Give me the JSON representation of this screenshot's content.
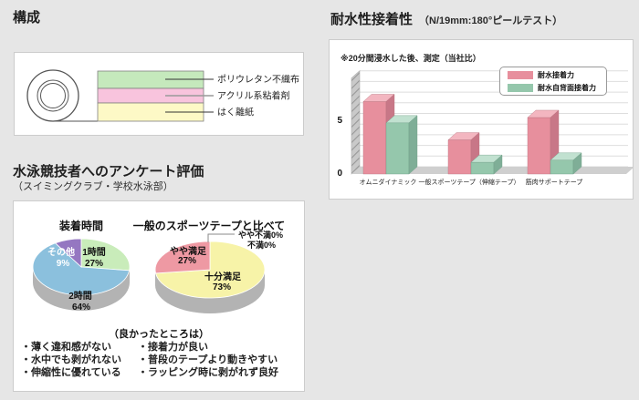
{
  "composition": {
    "title": "構成",
    "layers": [
      {
        "label": "ポリウレタン不織布",
        "color": "#c5e9bc"
      },
      {
        "label": "アクリル系粘着剤",
        "color": "#f8c4dd"
      },
      {
        "label": "はく離紙",
        "color": "#fdf9c6"
      }
    ]
  },
  "adhesion": {
    "title": "耐水性接着性",
    "title_note": "（N/19mm:180°ピールテスト）",
    "chart_note": "※20分間浸水した後、測定（当社比）"
  },
  "survey": {
    "title": "水泳競技者へのアンケート評価",
    "subtitle": "（スイミングクラブ・学校水泳部）",
    "good_points_title": "（良かったところは）",
    "good_points_left": [
      "・薄く違和感がない",
      "・水中でも剥がれない",
      "・伸縮性に優れている"
    ],
    "good_points_right": [
      "・接着力が良い",
      "・普段のテープより動きやすい",
      "・ラッピング時に剥がれず良好"
    ]
  },
  "chart_data": [
    {
      "type": "bar",
      "style": "3d",
      "title": "耐水性接着性（N/19mm:180°ピールテスト）",
      "note": "※20分間浸水した後、測定（当社比）",
      "categories": [
        "オムニダイナミック",
        "一般スポーツテープ（伸縮テープ）",
        "筋肉サポートテープ"
      ],
      "series": [
        {
          "name": "耐水接着力",
          "color": "#e78f9d",
          "values": [
            6.8,
            3.2,
            5.3
          ]
        },
        {
          "name": "耐水自背面接着力",
          "color": "#95c7ac",
          "values": [
            4.8,
            1.1,
            1.3
          ]
        }
      ],
      "ylim": [
        0,
        9
      ],
      "yticks": [
        0,
        5
      ],
      "grid": true,
      "legend_position": "top-right"
    },
    {
      "type": "pie",
      "style": "3d",
      "title": "装着時間",
      "slices": [
        {
          "label": "1時間",
          "value": 27,
          "color": "#c9ecba",
          "text_color": "#111111"
        },
        {
          "label": "2時間",
          "value": 64,
          "color": "#8bc0dd",
          "text_color": "#111111"
        },
        {
          "label": "その他",
          "value": 9,
          "color": "#9577c1",
          "text_color": "#ffffff"
        }
      ]
    },
    {
      "type": "pie",
      "style": "3d",
      "title": "一般のスポーツテープと比べて",
      "slices": [
        {
          "label": "十分満足",
          "value": 73,
          "color": "#f7f3a8",
          "text_color": "#111111"
        },
        {
          "label": "やや満足",
          "value": 27,
          "color": "#ee99a3",
          "text_color": "#111111"
        },
        {
          "label": "やや不満",
          "value": 0,
          "color": null,
          "text_color": "#111111"
        },
        {
          "label": "不満",
          "value": 0,
          "color": null,
          "text_color": "#111111"
        }
      ]
    }
  ]
}
